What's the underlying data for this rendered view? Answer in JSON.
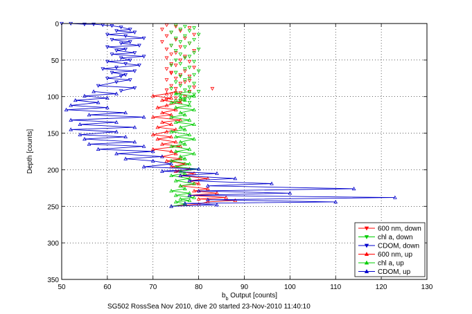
{
  "chart_data": {
    "type": "line",
    "title": "",
    "xlabel_main": "b",
    "xlabel_sub": "b",
    "xlabel_rest": " Output [counts]",
    "ylabel": "Depth [counts]",
    "caption": "SG502 RossSea Nov 2010, dive 20 started 23-Nov-2010 11:40:10",
    "xlim": [
      50,
      130
    ],
    "ylim": [
      0,
      350
    ],
    "y_reversed": true,
    "grid": true,
    "legend_position": "bottom-right",
    "xticks": [
      50,
      60,
      70,
      80,
      90,
      100,
      110,
      120,
      130
    ],
    "yticks": [
      0,
      50,
      100,
      150,
      200,
      250,
      300,
      350
    ],
    "series": [
      {
        "name": "600 nm, down",
        "color": "#ff0000",
        "marker": "triangle-down",
        "connected": false,
        "x": [
          73,
          75,
          78,
          72,
          76,
          74,
          79,
          73,
          77,
          75,
          72,
          78,
          74,
          76,
          73,
          79,
          75,
          74,
          77,
          73,
          76,
          78,
          74,
          75,
          79,
          73,
          77,
          74,
          76,
          78,
          75,
          73,
          77,
          76,
          74,
          79,
          75,
          73,
          78,
          76,
          74,
          77,
          75,
          73,
          76,
          83,
          78,
          74
        ],
        "y": [
          2,
          4,
          6,
          8,
          10,
          12,
          15,
          17,
          20,
          22,
          25,
          27,
          30,
          32,
          35,
          37,
          40,
          42,
          45,
          47,
          50,
          52,
          55,
          57,
          60,
          62,
          65,
          67,
          70,
          72,
          75,
          77,
          80,
          82,
          85,
          87,
          89,
          91,
          93,
          95,
          97,
          100,
          102,
          104,
          106,
          89,
          78,
          68
        ]
      },
      {
        "name": "chl a, down",
        "color": "#00cc00",
        "marker": "triangle-down",
        "connected": false,
        "x": [
          75,
          77,
          79,
          76,
          78,
          74,
          80,
          77,
          75,
          79,
          76,
          78,
          74,
          77,
          80,
          75,
          79,
          76,
          78,
          77,
          75,
          79,
          76,
          74,
          78,
          77,
          80,
          75,
          79,
          76,
          78,
          77,
          75,
          79,
          76,
          78,
          74,
          77,
          80,
          75,
          79,
          76,
          78,
          77,
          75,
          78
        ],
        "y": [
          2,
          4,
          6,
          8,
          10,
          12,
          15,
          17,
          20,
          22,
          25,
          27,
          30,
          32,
          35,
          37,
          40,
          42,
          45,
          47,
          50,
          52,
          55,
          57,
          60,
          62,
          65,
          67,
          70,
          72,
          75,
          77,
          80,
          82,
          85,
          87,
          89,
          91,
          93,
          95,
          97,
          100,
          102,
          104,
          106,
          108
        ]
      },
      {
        "name": "CDOM, down",
        "color": "#0000cc",
        "marker": "triangle-down",
        "connected": true,
        "x": [
          50,
          52,
          55,
          57,
          59,
          61,
          63,
          65,
          62,
          66,
          60,
          64,
          68,
          61,
          65,
          63,
          67,
          60,
          64,
          62,
          66,
          61,
          68,
          63,
          65,
          60,
          64,
          67,
          62,
          59,
          66,
          61,
          64,
          63,
          60,
          65,
          62,
          58,
          66,
          63
        ],
        "y": [
          0,
          0,
          1,
          1,
          2,
          3,
          5,
          8,
          10,
          12,
          15,
          17,
          20,
          22,
          25,
          27,
          30,
          32,
          35,
          37,
          40,
          42,
          45,
          47,
          50,
          52,
          55,
          57,
          60,
          62,
          65,
          67,
          70,
          72,
          75,
          77,
          80,
          85,
          88,
          92
        ]
      },
      {
        "name": "600 nm, up",
        "color": "#ff0000",
        "marker": "triangle-up",
        "connected": true,
        "x": [
          74,
          80,
          82,
          88,
          80,
          86,
          78,
          84,
          79,
          82,
          76,
          80,
          78,
          82,
          76,
          79,
          75,
          78,
          74,
          77,
          73,
          76,
          72,
          75,
          74,
          70,
          76,
          72,
          75,
          71,
          74,
          70,
          73,
          75,
          71,
          74,
          72,
          76,
          70,
          74,
          72,
          75,
          71,
          73,
          76,
          72,
          74,
          70,
          73,
          75
        ],
        "y": [
          250,
          247,
          244,
          242,
          240,
          238,
          235,
          232,
          229,
          226,
          222,
          219,
          215,
          212,
          208,
          205,
          202,
          199,
          196,
          192,
          188,
          185,
          182,
          178,
          175,
          172,
          168,
          165,
          162,
          158,
          155,
          152,
          148,
          145,
          142,
          138,
          135,
          132,
          128,
          125,
          122,
          118,
          115,
          112,
          108,
          105,
          102,
          99,
          96,
          93
        ]
      },
      {
        "name": "chl a, up",
        "color": "#00cc00",
        "marker": "triangle-up",
        "connected": true,
        "x": [
          74,
          77,
          75,
          78,
          76,
          79,
          75,
          78,
          74,
          77,
          76,
          79,
          75,
          78,
          74,
          77,
          76,
          80,
          75,
          78,
          74,
          77,
          76,
          79,
          75,
          78,
          74,
          77,
          76,
          79,
          75,
          78,
          74,
          77,
          76,
          79,
          75,
          78,
          74,
          77,
          76,
          79,
          75,
          78,
          74,
          77,
          76,
          79,
          75,
          78
        ],
        "y": [
          250,
          247,
          244,
          242,
          240,
          238,
          235,
          232,
          229,
          226,
          222,
          219,
          215,
          212,
          208,
          205,
          202,
          199,
          196,
          192,
          188,
          185,
          182,
          178,
          175,
          172,
          168,
          165,
          162,
          158,
          155,
          152,
          148,
          145,
          142,
          138,
          135,
          132,
          128,
          125,
          122,
          118,
          115,
          112,
          108,
          105,
          102,
          99,
          96,
          93
        ]
      },
      {
        "name": "CDOM, up",
        "color": "#0000cc",
        "marker": "triangle-up",
        "connected": true,
        "x": [
          74,
          84,
          77,
          110,
          82,
          123,
          78,
          100,
          80,
          114,
          82,
          96,
          78,
          88,
          76,
          84,
          72,
          80,
          68,
          74,
          70,
          64,
          72,
          62,
          70,
          58,
          68,
          56,
          66,
          55,
          64,
          54,
          62,
          52,
          66,
          54,
          62,
          52,
          68,
          56,
          64,
          51,
          60,
          52,
          58,
          53,
          60,
          55,
          62,
          57
        ],
        "y": [
          250,
          248,
          246,
          244,
          241,
          238,
          235,
          232,
          229,
          226,
          222,
          219,
          215,
          212,
          208,
          205,
          202,
          199,
          196,
          192,
          188,
          185,
          182,
          178,
          175,
          172,
          168,
          165,
          162,
          158,
          155,
          152,
          148,
          145,
          142,
          138,
          135,
          132,
          128,
          125,
          122,
          118,
          115,
          112,
          108,
          105,
          102,
          99,
          96,
          93
        ]
      }
    ]
  }
}
